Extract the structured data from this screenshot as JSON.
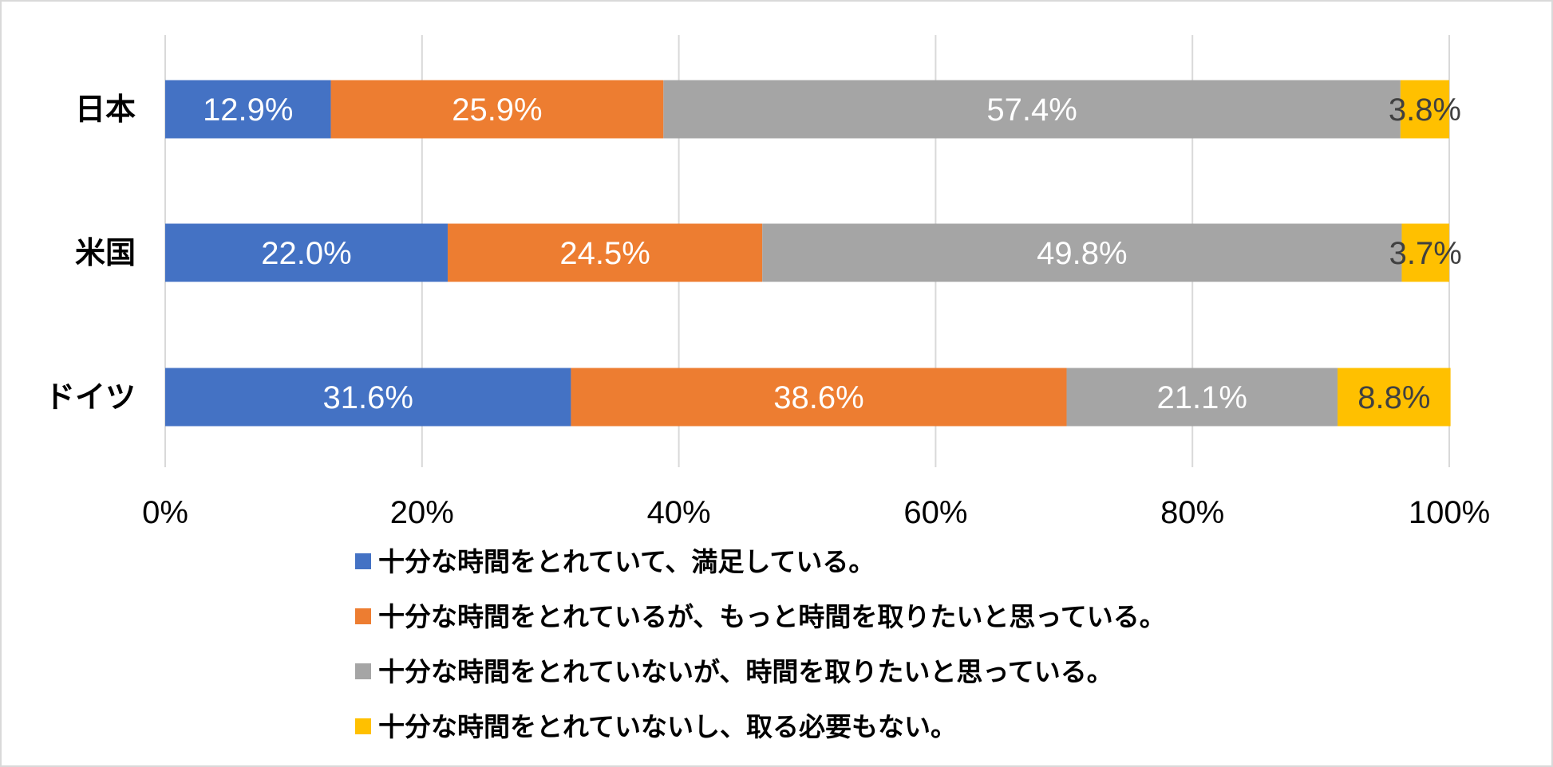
{
  "chart_data": {
    "type": "bar",
    "orientation": "horizontal",
    "stacked": "percent",
    "categories": [
      "日本",
      "米国",
      "ドイツ"
    ],
    "series": [
      {
        "name": "十分な時間をとれていて、満足している。",
        "values": [
          12.9,
          22.0,
          31.6
        ],
        "labels": [
          "12.9%",
          "22.0%",
          "31.6%"
        ],
        "color": "#4472C4",
        "label_color": "#FFFFFF"
      },
      {
        "name": "十分な時間をとれているが、もっと時間を取りたいと思っている。",
        "values": [
          25.9,
          24.5,
          38.6
        ],
        "labels": [
          "25.9%",
          "24.5%",
          "38.6%"
        ],
        "color": "#ED7D31",
        "label_color": "#FFFFFF"
      },
      {
        "name": "十分な時間をとれていないが、時間を取りたいと思っている。",
        "values": [
          57.4,
          49.8,
          21.1
        ],
        "labels": [
          "57.4%",
          "49.8%",
          "21.1%"
        ],
        "color": "#A5A5A5",
        "label_color": "#FFFFFF"
      },
      {
        "name": "十分な時間をとれていないし、取る必要もない。",
        "values": [
          3.8,
          3.7,
          8.8
        ],
        "labels": [
          "3.8%",
          "3.7%",
          "8.8%"
        ],
        "color": "#FFC000",
        "label_color": "#404040"
      }
    ],
    "x_ticks": [
      "0%",
      "20%",
      "40%",
      "60%",
      "80%",
      "100%"
    ],
    "xlim": [
      0,
      100
    ],
    "grid": true,
    "legend_position": "bottom"
  }
}
